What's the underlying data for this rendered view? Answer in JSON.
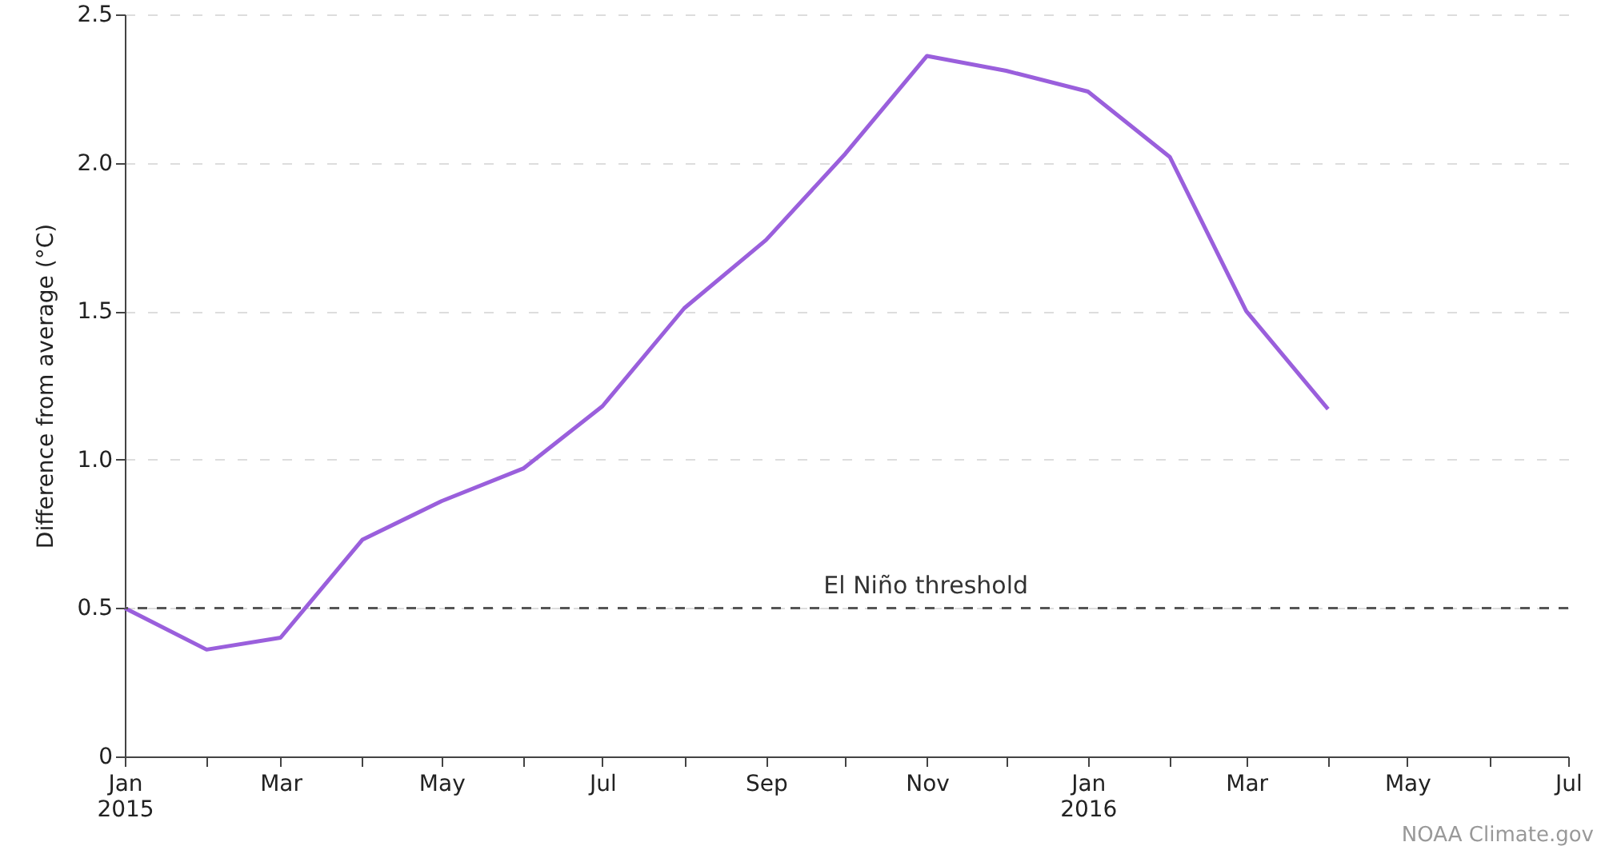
{
  "chart_data": {
    "type": "line",
    "ylabel": "Difference from average (°C)",
    "x": [
      "2015-01",
      "2015-02",
      "2015-03",
      "2015-04",
      "2015-05",
      "2015-06",
      "2015-07",
      "2015-08",
      "2015-09",
      "2015-10",
      "2015-11",
      "2015-12",
      "2016-01",
      "2016-02",
      "2016-03",
      "2016-04"
    ],
    "series": [
      {
        "color": "#9a5fdc",
        "values": [
          0.5,
          0.36,
          0.4,
          0.73,
          0.86,
          0.97,
          1.18,
          1.51,
          1.74,
          2.03,
          2.36,
          2.31,
          2.24,
          2.02,
          1.5,
          1.17
        ]
      }
    ],
    "xlim": [
      "2015-01",
      "2016-07"
    ],
    "xticks": [
      {
        "value": "2015-01",
        "label": "Jan\n2015"
      },
      {
        "value": "2015-02",
        "label": null
      },
      {
        "value": "2015-03",
        "label": "Mar"
      },
      {
        "value": "2015-04",
        "label": null
      },
      {
        "value": "2015-05",
        "label": "May"
      },
      {
        "value": "2015-06",
        "label": null
      },
      {
        "value": "2015-07",
        "label": "Jul"
      },
      {
        "value": "2015-08",
        "label": null
      },
      {
        "value": "2015-09",
        "label": "Sep"
      },
      {
        "value": "2015-10",
        "label": null
      },
      {
        "value": "2015-11",
        "label": "Nov"
      },
      {
        "value": "2015-12",
        "label": null
      },
      {
        "value": "2016-01",
        "label": "Jan\n2016"
      },
      {
        "value": "2016-02",
        "label": null
      },
      {
        "value": "2016-03",
        "label": "Mar"
      },
      {
        "value": "2016-04",
        "label": null
      },
      {
        "value": "2016-05",
        "label": "May"
      },
      {
        "value": "2016-06",
        "label": null
      },
      {
        "value": "2016-07",
        "label": "Jul"
      }
    ],
    "ylim": [
      0,
      2.5
    ],
    "yticks": [
      0,
      0.5,
      {
        "value": 1,
        "label": "1.0"
      },
      1.5,
      {
        "value": 2,
        "label": "2.0"
      },
      2.5
    ],
    "grid": "y",
    "marker": "none",
    "line_style": "solid",
    "ref_lines": [
      {
        "axis": "y",
        "value": 0.5,
        "label": "El Niño threshold",
        "color": "#555555",
        "line_style": "dashed"
      }
    ],
    "annotations": [
      "NOAA Climate.gov"
    ]
  }
}
